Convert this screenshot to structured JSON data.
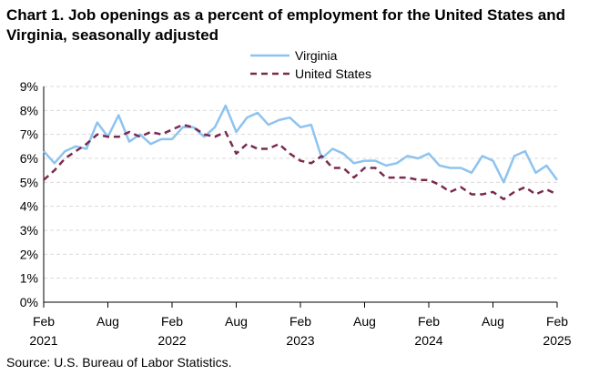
{
  "title": "Chart 1. Job openings as a percent of employment for the United States and Virginia, seasonally adjusted",
  "source": "Source: U.S. Bureau of Labor Statistics.",
  "colors": {
    "virginia": "#8ec3f0",
    "united_states": "#7b2a4f",
    "grid": "#d9d9d9",
    "axis": "#000000"
  },
  "chart_data": {
    "type": "line",
    "title": "Chart 1. Job openings as a percent of employment for the United States and Virginia, seasonally adjusted",
    "xlabel": "",
    "ylabel": "",
    "ylim": [
      0,
      9
    ],
    "y_ticks": [
      0,
      1,
      2,
      3,
      4,
      5,
      6,
      7,
      8,
      9
    ],
    "y_tick_labels": [
      "0%",
      "1%",
      "2%",
      "3%",
      "4%",
      "5%",
      "6%",
      "7%",
      "8%",
      "9%"
    ],
    "x_ticks": [
      {
        "index": 0,
        "month": "Feb",
        "year": "2021"
      },
      {
        "index": 6,
        "month": "Aug",
        "year": ""
      },
      {
        "index": 12,
        "month": "Feb",
        "year": "2022"
      },
      {
        "index": 18,
        "month": "Aug",
        "year": ""
      },
      {
        "index": 24,
        "month": "Feb",
        "year": "2023"
      },
      {
        "index": 30,
        "month": "Aug",
        "year": ""
      },
      {
        "index": 36,
        "month": "Feb",
        "year": "2024"
      },
      {
        "index": 42,
        "month": "Aug",
        "year": ""
      },
      {
        "index": 48,
        "month": "Feb",
        "year": "2025"
      }
    ],
    "x_start": "Feb 2021",
    "x_end": "Feb 2025",
    "legend_position": "top-center",
    "grid": true,
    "series": [
      {
        "name": "Virginia",
        "style": "solid",
        "values": [
          6.3,
          5.8,
          6.3,
          6.5,
          6.4,
          7.5,
          6.9,
          7.8,
          6.7,
          7.0,
          6.6,
          6.8,
          6.8,
          7.3,
          7.3,
          6.9,
          7.3,
          8.2,
          7.1,
          7.7,
          7.9,
          7.4,
          7.6,
          7.7,
          7.3,
          7.4,
          6.0,
          6.4,
          6.2,
          5.8,
          5.9,
          5.9,
          5.7,
          5.8,
          6.1,
          6.0,
          6.2,
          5.7,
          5.6,
          5.6,
          5.4,
          6.1,
          5.9,
          5.0,
          6.1,
          6.3,
          5.4,
          5.7,
          5.1
        ]
      },
      {
        "name": "United States",
        "style": "dashed",
        "values": [
          5.1,
          5.5,
          6.0,
          6.3,
          6.6,
          7.0,
          6.9,
          6.9,
          7.1,
          6.9,
          7.1,
          7.0,
          7.2,
          7.4,
          7.3,
          7.0,
          6.9,
          7.1,
          6.2,
          6.6,
          6.4,
          6.4,
          6.6,
          6.2,
          5.9,
          5.8,
          6.1,
          5.6,
          5.6,
          5.2,
          5.6,
          5.6,
          5.2,
          5.2,
          5.2,
          5.1,
          5.1,
          4.9,
          4.6,
          4.8,
          4.5,
          4.5,
          4.6,
          4.3,
          4.6,
          4.8,
          4.5,
          4.7,
          4.5
        ]
      }
    ]
  }
}
